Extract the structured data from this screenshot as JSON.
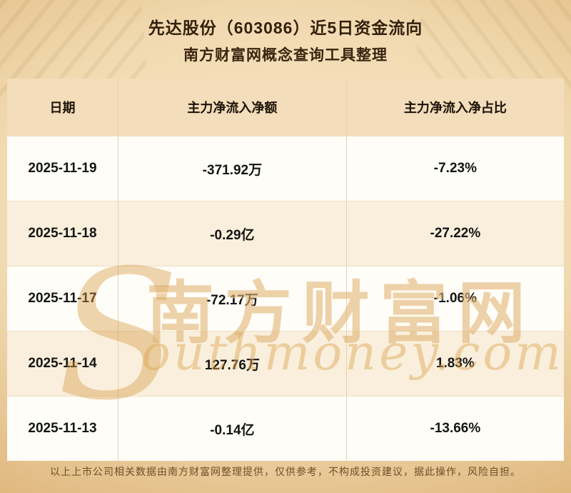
{
  "header": {
    "title": "先达股份（603086）近5日资金流向",
    "subtitle": "南方财富网概念查询工具整理"
  },
  "chart_data": {
    "type": "table",
    "title": "先达股份（603086）近5日资金流向",
    "columns": [
      "日期",
      "主力净流入净额",
      "主力净流入净占比"
    ],
    "rows": [
      [
        "2025-11-19",
        "-371.92万",
        "-7.23%"
      ],
      [
        "2025-11-18",
        "-0.29亿",
        "-27.22%"
      ],
      [
        "2025-11-17",
        "-72.17万",
        "-1.06%"
      ],
      [
        "2025-11-14",
        "127.76万",
        "1.83%"
      ],
      [
        "2025-11-13",
        "-0.14亿",
        "-13.66%"
      ]
    ]
  },
  "watermark": {
    "initial": "S",
    "cn": "南方财富网",
    "en": "outhmoney.com"
  },
  "footer": {
    "text": "以上上市公司相关数据由南方财富网整理提供，仅供参考，不构成投资建议，据此操作，风险自担。"
  },
  "colors": {
    "background_gold": "#e4bd83",
    "header_row": "#f3ddba",
    "row_cream": "#f9efdc",
    "row_white": "#fffdf7",
    "title_text": "#33200c",
    "watermark_gold": "#d19c4e"
  }
}
